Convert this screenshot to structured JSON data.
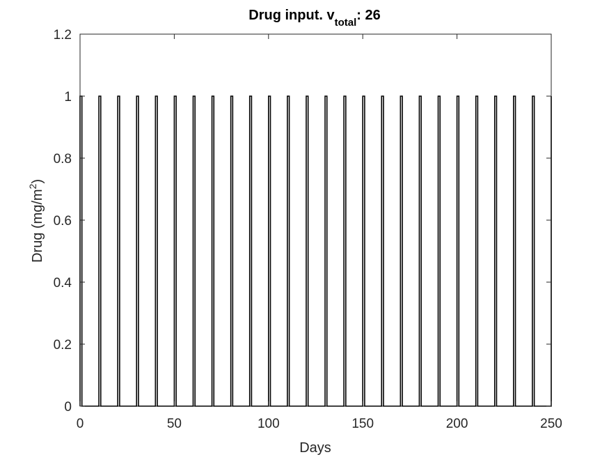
{
  "chart_data": {
    "type": "line",
    "title": {
      "prefix": "Drug input. v",
      "subscript": "total",
      "suffix": ": 26"
    },
    "xlabel": "Days",
    "ylabel": {
      "main": "Drug (mg/m",
      "superscript": "2",
      "close": ")"
    },
    "xlim": [
      0,
      250
    ],
    "ylim": [
      0,
      1.2
    ],
    "xticks": [
      "0",
      "50",
      "100",
      "150",
      "200",
      "250"
    ],
    "yticks": [
      "0",
      "0.2",
      "0.4",
      "0.6",
      "0.8",
      "1",
      "1.2"
    ],
    "grid": false,
    "series": [
      {
        "color": "#000000",
        "pulse_starts": [
          0,
          10,
          20,
          30,
          40,
          50,
          60,
          70,
          80,
          90,
          100,
          110,
          120,
          130,
          140,
          150,
          160,
          170,
          180,
          190,
          200,
          210,
          220,
          230,
          240,
          250
        ],
        "pulse_duration": 1,
        "pulse_value": 1
      }
    ]
  }
}
